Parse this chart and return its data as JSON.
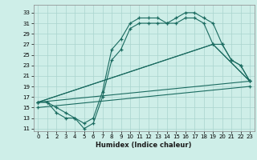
{
  "xlabel": "Humidex (Indice chaleur)",
  "background_color": "#ceeee8",
  "grid_color": "#aad4ce",
  "line_color": "#1a6b60",
  "xlim": [
    -0.5,
    23.5
  ],
  "ylim": [
    10.5,
    34.5
  ],
  "xticks": [
    0,
    1,
    2,
    3,
    4,
    5,
    6,
    7,
    8,
    9,
    10,
    11,
    12,
    13,
    14,
    15,
    16,
    17,
    18,
    19,
    20,
    21,
    22,
    23
  ],
  "yticks": [
    11,
    13,
    15,
    17,
    19,
    21,
    23,
    25,
    27,
    29,
    31,
    33
  ],
  "line1_x": [
    0,
    1,
    2,
    3,
    4,
    5,
    6,
    7,
    8,
    9,
    10,
    11,
    12,
    13,
    14,
    15,
    16,
    17,
    18,
    19,
    20,
    21,
    22,
    23
  ],
  "line1_y": [
    16,
    16,
    15,
    14,
    13,
    12,
    13,
    18,
    26,
    28,
    31,
    32,
    32,
    32,
    31,
    32,
    33,
    33,
    32,
    31,
    27,
    24,
    23,
    20
  ],
  "line2_x": [
    0,
    1,
    2,
    3,
    4,
    5,
    6,
    7,
    8,
    9,
    10,
    11,
    12,
    13,
    14,
    15,
    16,
    17,
    18,
    19,
    20,
    21,
    22,
    23
  ],
  "line2_y": [
    16,
    16,
    14,
    13,
    13,
    11,
    12,
    17,
    24,
    26,
    30,
    31,
    31,
    31,
    31,
    31,
    32,
    32,
    31,
    27,
    27,
    24,
    23,
    20
  ],
  "line3_x": [
    0,
    19,
    23
  ],
  "line3_y": [
    16,
    27,
    20
  ],
  "line4_x": [
    0,
    19,
    23
  ],
  "line4_y": [
    16,
    27,
    20
  ],
  "line5_x": [
    0,
    23
  ],
  "line5_y": [
    15,
    20
  ]
}
